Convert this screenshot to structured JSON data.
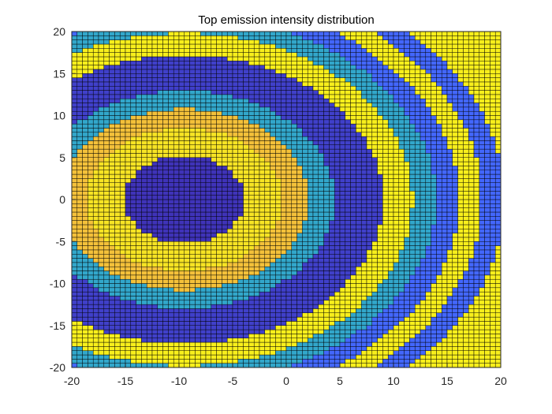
{
  "chart_data": {
    "type": "heatmap",
    "title": "Top emission intensity distribution",
    "xlabel": "",
    "ylabel": "",
    "xlim": [
      -20,
      20
    ],
    "ylim": [
      -20,
      20
    ],
    "xticks": [
      "-20",
      "-15",
      "-10",
      "-5",
      "0",
      "5",
      "10",
      "15",
      "20"
    ],
    "yticks": [
      "20",
      "15",
      "10",
      "5",
      "0",
      "-5",
      "-10",
      "-15",
      "-20"
    ],
    "grid_step": 0.5,
    "source_center": [
      -9.5,
      0
    ],
    "band_edges_radius": [
      5.2,
      8.5,
      10.8,
      13.0,
      17.2,
      19.8,
      21.8,
      23.8,
      25.8,
      27.8
    ],
    "band_levels": [
      0.05,
      0.9,
      0.75,
      0.45,
      0.1,
      0.95,
      0.45,
      0.25,
      0.95,
      0.25,
      0.95
    ],
    "grid": "on",
    "colormap": [
      "#3e26a8",
      "#4367fd",
      "#2eb7be",
      "#f4c13a",
      "#f9fb15"
    ]
  }
}
